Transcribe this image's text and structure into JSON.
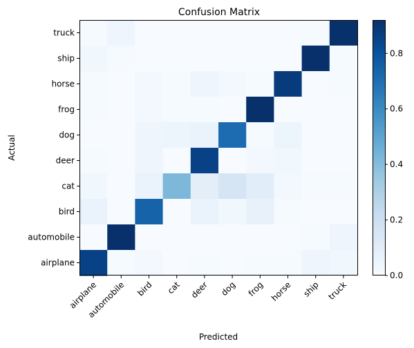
{
  "chart_data": {
    "type": "heatmap",
    "title": "Confusion Matrix",
    "xlabel": "Predicted",
    "ylabel": "Actual",
    "x_categories": [
      "airplane",
      "automobile",
      "bird",
      "cat",
      "deer",
      "dog",
      "frog",
      "horse",
      "ship",
      "truck"
    ],
    "y_categories_top_to_bottom": [
      "truck",
      "ship",
      "horse",
      "frog",
      "dog",
      "deer",
      "cat",
      "bird",
      "automobile",
      "airplane"
    ],
    "matrix_rows_top_to_bottom": [
      [
        0.01,
        0.04,
        0.0,
        0.0,
        0.0,
        0.0,
        0.0,
        0.0,
        0.01,
        0.92
      ],
      [
        0.03,
        0.01,
        0.0,
        0.0,
        0.0,
        0.0,
        0.0,
        0.0,
        0.92,
        0.01
      ],
      [
        0.01,
        0.0,
        0.02,
        0.01,
        0.04,
        0.02,
        0.01,
        0.88,
        0.0,
        0.01
      ],
      [
        0.01,
        0.0,
        0.02,
        0.01,
        0.01,
        0.0,
        0.93,
        0.0,
        0.0,
        0.0
      ],
      [
        0.0,
        0.0,
        0.04,
        0.05,
        0.06,
        0.71,
        0.01,
        0.05,
        0.0,
        0.0
      ],
      [
        0.01,
        0.0,
        0.04,
        0.0,
        0.86,
        0.0,
        0.02,
        0.03,
        0.0,
        0.0
      ],
      [
        0.03,
        0.0,
        0.06,
        0.42,
        0.09,
        0.16,
        0.1,
        0.02,
        0.01,
        0.01
      ],
      [
        0.06,
        0.0,
        0.74,
        0.0,
        0.06,
        0.03,
        0.07,
        0.01,
        0.0,
        0.0
      ],
      [
        0.0,
        0.95,
        0.0,
        0.0,
        0.0,
        0.0,
        0.0,
        0.0,
        0.01,
        0.04
      ],
      [
        0.86,
        0.01,
        0.02,
        0.0,
        0.01,
        0.0,
        0.01,
        0.01,
        0.04,
        0.03
      ]
    ],
    "colorbar": {
      "colormap": "Blues",
      "range": [
        0.0,
        0.92
      ],
      "ticks": [
        0.0,
        0.2,
        0.4,
        0.6,
        0.8
      ],
      "tick_labels": [
        "0.0",
        "0.2",
        "0.4",
        "0.6",
        "0.8"
      ]
    },
    "colors": {
      "low": "#f7fbff",
      "mid": "#6baed6",
      "high": "#08306b"
    }
  }
}
